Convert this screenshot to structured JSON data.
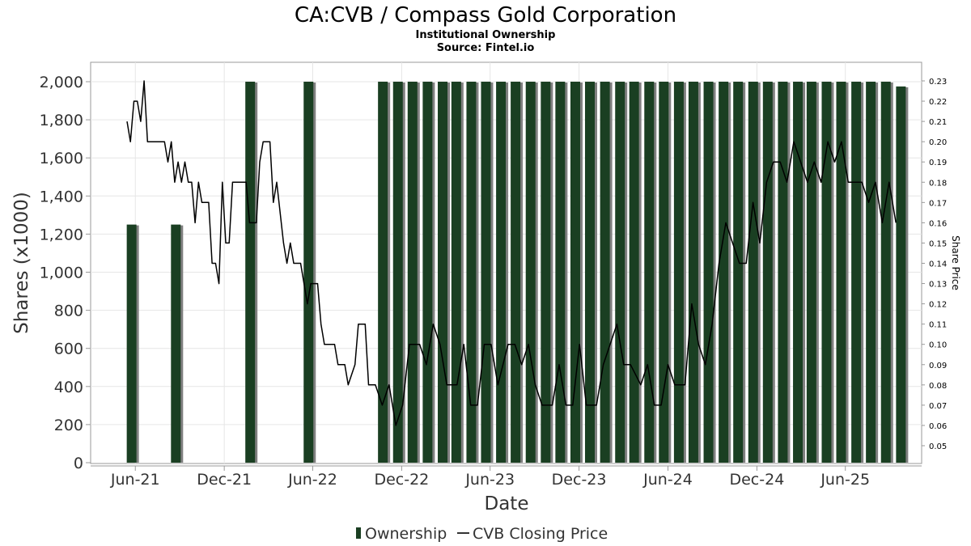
{
  "chart_data": {
    "type": "bar",
    "title": "CA:CVB / Compass Gold Corporation",
    "subtitle": "Institutional Ownership",
    "source": "Source: Fintel.io",
    "xlabel": "Date",
    "ylabel": "Shares (x1000)",
    "y2label": "Share Price",
    "ylim": [
      0,
      2100
    ],
    "y2lim": [
      0.04,
      0.234
    ],
    "x_start": "2021-03-01",
    "x_end": "2025-11-05",
    "grid": true,
    "legend": "bottom",
    "y_ticks": [
      {
        "value": 0,
        "label": "0"
      },
      {
        "value": 200,
        "label": "200"
      },
      {
        "value": 400,
        "label": "400"
      },
      {
        "value": 600,
        "label": "600"
      },
      {
        "value": 800,
        "label": "800"
      },
      {
        "value": 1000,
        "label": "1,000"
      },
      {
        "value": 1200,
        "label": "1,200"
      },
      {
        "value": 1400,
        "label": "1,400"
      },
      {
        "value": 1600,
        "label": "1,600"
      },
      {
        "value": 1800,
        "label": "1,800"
      },
      {
        "value": 2000,
        "label": "2,000"
      }
    ],
    "y2_ticks": [
      {
        "value": 0.05,
        "label": "0.05"
      },
      {
        "value": 0.06,
        "label": "0.06"
      },
      {
        "value": 0.07,
        "label": "0.07"
      },
      {
        "value": 0.08,
        "label": "0.08"
      },
      {
        "value": 0.09,
        "label": "0.09"
      },
      {
        "value": 0.1,
        "label": "0.10"
      },
      {
        "value": 0.11,
        "label": "0.11"
      },
      {
        "value": 0.12,
        "label": "0.12"
      },
      {
        "value": 0.13,
        "label": "0.13"
      },
      {
        "value": 0.14,
        "label": "0.14"
      },
      {
        "value": 0.15,
        "label": "0.15"
      },
      {
        "value": 0.16,
        "label": "0.16"
      },
      {
        "value": 0.17,
        "label": "0.17"
      },
      {
        "value": 0.18,
        "label": "0.18"
      },
      {
        "value": 0.19,
        "label": "0.19"
      },
      {
        "value": 0.2,
        "label": "0.20"
      },
      {
        "value": 0.21,
        "label": "0.21"
      },
      {
        "value": 0.22,
        "label": "0.22"
      },
      {
        "value": 0.23,
        "label": "0.23"
      }
    ],
    "x_ticks": [
      {
        "date": "2021-06-01",
        "label": "Jun-21"
      },
      {
        "date": "2021-12-01",
        "label": "Dec-21"
      },
      {
        "date": "2022-06-01",
        "label": "Jun-22"
      },
      {
        "date": "2022-12-01",
        "label": "Dec-22"
      },
      {
        "date": "2023-06-01",
        "label": "Jun-23"
      },
      {
        "date": "2023-12-01",
        "label": "Dec-23"
      },
      {
        "date": "2024-06-01",
        "label": "Jun-24"
      },
      {
        "date": "2024-12-01",
        "label": "Dec-24"
      },
      {
        "date": "2025-06-01",
        "label": "Jun-25"
      }
    ],
    "series": [
      {
        "name": "Ownership",
        "type": "bar",
        "color": "#1a3f22",
        "points": [
          {
            "date": "2021-05-16",
            "value": 1250
          },
          {
            "date": "2021-08-15",
            "value": 1250
          },
          {
            "date": "2022-01-15",
            "value": 2000
          },
          {
            "date": "2022-05-15",
            "value": 2000
          },
          {
            "date": "2022-10-15",
            "value": 2000
          },
          {
            "date": "2022-11-15",
            "value": 2000
          },
          {
            "date": "2022-12-15",
            "value": 2000
          },
          {
            "date": "2023-01-15",
            "value": 2000
          },
          {
            "date": "2023-02-15",
            "value": 2000
          },
          {
            "date": "2023-03-15",
            "value": 2000
          },
          {
            "date": "2023-04-15",
            "value": 2000
          },
          {
            "date": "2023-05-15",
            "value": 2000
          },
          {
            "date": "2023-06-15",
            "value": 2000
          },
          {
            "date": "2023-07-15",
            "value": 2000
          },
          {
            "date": "2023-08-15",
            "value": 2000
          },
          {
            "date": "2023-09-15",
            "value": 2000
          },
          {
            "date": "2023-10-15",
            "value": 2000
          },
          {
            "date": "2023-11-15",
            "value": 2000
          },
          {
            "date": "2023-12-15",
            "value": 2000
          },
          {
            "date": "2024-01-15",
            "value": 2000
          },
          {
            "date": "2024-02-15",
            "value": 2000
          },
          {
            "date": "2024-03-15",
            "value": 2000
          },
          {
            "date": "2024-04-15",
            "value": 2000
          },
          {
            "date": "2024-05-15",
            "value": 2000
          },
          {
            "date": "2024-06-15",
            "value": 2000
          },
          {
            "date": "2024-07-15",
            "value": 2000
          },
          {
            "date": "2024-08-15",
            "value": 2000
          },
          {
            "date": "2024-09-15",
            "value": 2000
          },
          {
            "date": "2024-10-15",
            "value": 2000
          },
          {
            "date": "2024-11-15",
            "value": 2000
          },
          {
            "date": "2024-12-15",
            "value": 2000
          },
          {
            "date": "2025-01-15",
            "value": 2000
          },
          {
            "date": "2025-02-15",
            "value": 2000
          },
          {
            "date": "2025-03-15",
            "value": 2000
          },
          {
            "date": "2025-04-15",
            "value": 2000
          },
          {
            "date": "2025-05-15",
            "value": 2000
          },
          {
            "date": "2025-06-15",
            "value": 2000
          },
          {
            "date": "2025-07-15",
            "value": 2000
          },
          {
            "date": "2025-08-15",
            "value": 2000
          },
          {
            "date": "2025-09-15",
            "value": 1975
          }
        ]
      },
      {
        "name": "CVB Closing Price",
        "type": "line",
        "color": "#000000",
        "points": [
          {
            "date": "2021-05-15",
            "value": 0.21
          },
          {
            "date": "2021-05-22",
            "value": 0.2
          },
          {
            "date": "2021-05-29",
            "value": 0.22
          },
          {
            "date": "2021-06-05",
            "value": 0.22
          },
          {
            "date": "2021-06-12",
            "value": 0.21
          },
          {
            "date": "2021-06-19",
            "value": 0.23
          },
          {
            "date": "2021-06-26",
            "value": 0.2
          },
          {
            "date": "2021-07-03",
            "value": 0.2
          },
          {
            "date": "2021-07-17",
            "value": 0.2
          },
          {
            "date": "2021-07-31",
            "value": 0.2
          },
          {
            "date": "2021-08-07",
            "value": 0.19
          },
          {
            "date": "2021-08-14",
            "value": 0.2
          },
          {
            "date": "2021-08-21",
            "value": 0.18
          },
          {
            "date": "2021-08-28",
            "value": 0.19
          },
          {
            "date": "2021-09-04",
            "value": 0.18
          },
          {
            "date": "2021-09-11",
            "value": 0.19
          },
          {
            "date": "2021-09-18",
            "value": 0.18
          },
          {
            "date": "2021-09-25",
            "value": 0.18
          },
          {
            "date": "2021-10-02",
            "value": 0.16
          },
          {
            "date": "2021-10-09",
            "value": 0.18
          },
          {
            "date": "2021-10-16",
            "value": 0.17
          },
          {
            "date": "2021-10-30",
            "value": 0.17
          },
          {
            "date": "2021-11-06",
            "value": 0.14
          },
          {
            "date": "2021-11-13",
            "value": 0.14
          },
          {
            "date": "2021-11-20",
            "value": 0.13
          },
          {
            "date": "2021-11-27",
            "value": 0.18
          },
          {
            "date": "2021-12-04",
            "value": 0.15
          },
          {
            "date": "2021-12-11",
            "value": 0.15
          },
          {
            "date": "2021-12-18",
            "value": 0.18
          },
          {
            "date": "2022-01-01",
            "value": 0.18
          },
          {
            "date": "2022-01-15",
            "value": 0.18
          },
          {
            "date": "2022-01-22",
            "value": 0.16
          },
          {
            "date": "2022-02-05",
            "value": 0.16
          },
          {
            "date": "2022-02-12",
            "value": 0.19
          },
          {
            "date": "2022-02-19",
            "value": 0.2
          },
          {
            "date": "2022-03-05",
            "value": 0.2
          },
          {
            "date": "2022-03-12",
            "value": 0.17
          },
          {
            "date": "2022-03-19",
            "value": 0.18
          },
          {
            "date": "2022-04-02",
            "value": 0.15
          },
          {
            "date": "2022-04-09",
            "value": 0.14
          },
          {
            "date": "2022-04-16",
            "value": 0.15
          },
          {
            "date": "2022-04-23",
            "value": 0.14
          },
          {
            "date": "2022-05-07",
            "value": 0.14
          },
          {
            "date": "2022-05-21",
            "value": 0.12
          },
          {
            "date": "2022-05-28",
            "value": 0.13
          },
          {
            "date": "2022-06-11",
            "value": 0.13
          },
          {
            "date": "2022-06-18",
            "value": 0.11
          },
          {
            "date": "2022-06-25",
            "value": 0.1
          },
          {
            "date": "2022-07-16",
            "value": 0.1
          },
          {
            "date": "2022-07-23",
            "value": 0.09
          },
          {
            "date": "2022-08-06",
            "value": 0.09
          },
          {
            "date": "2022-08-13",
            "value": 0.08
          },
          {
            "date": "2022-08-27",
            "value": 0.09
          },
          {
            "date": "2022-09-03",
            "value": 0.11
          },
          {
            "date": "2022-09-17",
            "value": 0.11
          },
          {
            "date": "2022-09-24",
            "value": 0.08
          },
          {
            "date": "2022-10-08",
            "value": 0.08
          },
          {
            "date": "2022-10-22",
            "value": 0.07
          },
          {
            "date": "2022-11-05",
            "value": 0.08
          },
          {
            "date": "2022-11-19",
            "value": 0.06
          },
          {
            "date": "2022-12-03",
            "value": 0.07
          },
          {
            "date": "2022-12-17",
            "value": 0.1
          },
          {
            "date": "2023-01-07",
            "value": 0.1
          },
          {
            "date": "2023-01-21",
            "value": 0.09
          },
          {
            "date": "2023-02-04",
            "value": 0.11
          },
          {
            "date": "2023-02-18",
            "value": 0.1
          },
          {
            "date": "2023-03-04",
            "value": 0.08
          },
          {
            "date": "2023-03-25",
            "value": 0.08
          },
          {
            "date": "2023-04-08",
            "value": 0.1
          },
          {
            "date": "2023-04-22",
            "value": 0.07
          },
          {
            "date": "2023-05-06",
            "value": 0.07
          },
          {
            "date": "2023-05-20",
            "value": 0.1
          },
          {
            "date": "2023-06-03",
            "value": 0.1
          },
          {
            "date": "2023-06-17",
            "value": 0.08
          },
          {
            "date": "2023-07-08",
            "value": 0.1
          },
          {
            "date": "2023-07-22",
            "value": 0.1
          },
          {
            "date": "2023-08-05",
            "value": 0.09
          },
          {
            "date": "2023-08-19",
            "value": 0.1
          },
          {
            "date": "2023-09-02",
            "value": 0.08
          },
          {
            "date": "2023-09-16",
            "value": 0.07
          },
          {
            "date": "2023-10-07",
            "value": 0.07
          },
          {
            "date": "2023-10-21",
            "value": 0.09
          },
          {
            "date": "2023-11-04",
            "value": 0.07
          },
          {
            "date": "2023-11-18",
            "value": 0.07
          },
          {
            "date": "2023-12-02",
            "value": 0.1
          },
          {
            "date": "2023-12-16",
            "value": 0.07
          },
          {
            "date": "2024-01-06",
            "value": 0.07
          },
          {
            "date": "2024-01-20",
            "value": 0.09
          },
          {
            "date": "2024-02-03",
            "value": 0.1
          },
          {
            "date": "2024-02-17",
            "value": 0.11
          },
          {
            "date": "2024-03-02",
            "value": 0.09
          },
          {
            "date": "2024-03-16",
            "value": 0.09
          },
          {
            "date": "2024-04-06",
            "value": 0.08
          },
          {
            "date": "2024-04-20",
            "value": 0.09
          },
          {
            "date": "2024-05-04",
            "value": 0.07
          },
          {
            "date": "2024-05-18",
            "value": 0.07
          },
          {
            "date": "2024-06-01",
            "value": 0.09
          },
          {
            "date": "2024-06-15",
            "value": 0.08
          },
          {
            "date": "2024-07-06",
            "value": 0.08
          },
          {
            "date": "2024-07-20",
            "value": 0.12
          },
          {
            "date": "2024-08-03",
            "value": 0.1
          },
          {
            "date": "2024-08-17",
            "value": 0.09
          },
          {
            "date": "2024-08-31",
            "value": 0.11
          },
          {
            "date": "2024-09-14",
            "value": 0.14
          },
          {
            "date": "2024-09-28",
            "value": 0.16
          },
          {
            "date": "2024-10-12",
            "value": 0.15
          },
          {
            "date": "2024-10-26",
            "value": 0.14
          },
          {
            "date": "2024-11-09",
            "value": 0.14
          },
          {
            "date": "2024-11-23",
            "value": 0.17
          },
          {
            "date": "2024-12-07",
            "value": 0.15
          },
          {
            "date": "2024-12-21",
            "value": 0.18
          },
          {
            "date": "2025-01-04",
            "value": 0.19
          },
          {
            "date": "2025-01-18",
            "value": 0.19
          },
          {
            "date": "2025-02-01",
            "value": 0.18
          },
          {
            "date": "2025-02-15",
            "value": 0.2
          },
          {
            "date": "2025-03-01",
            "value": 0.19
          },
          {
            "date": "2025-03-15",
            "value": 0.18
          },
          {
            "date": "2025-03-29",
            "value": 0.19
          },
          {
            "date": "2025-04-12",
            "value": 0.18
          },
          {
            "date": "2025-04-26",
            "value": 0.2
          },
          {
            "date": "2025-05-10",
            "value": 0.19
          },
          {
            "date": "2025-05-24",
            "value": 0.2
          },
          {
            "date": "2025-06-07",
            "value": 0.18
          },
          {
            "date": "2025-06-21",
            "value": 0.18
          },
          {
            "date": "2025-07-05",
            "value": 0.18
          },
          {
            "date": "2025-07-19",
            "value": 0.17
          },
          {
            "date": "2025-08-02",
            "value": 0.18
          },
          {
            "date": "2025-08-16",
            "value": 0.16
          },
          {
            "date": "2025-08-30",
            "value": 0.18
          },
          {
            "date": "2025-09-13",
            "value": 0.16
          }
        ]
      }
    ]
  }
}
